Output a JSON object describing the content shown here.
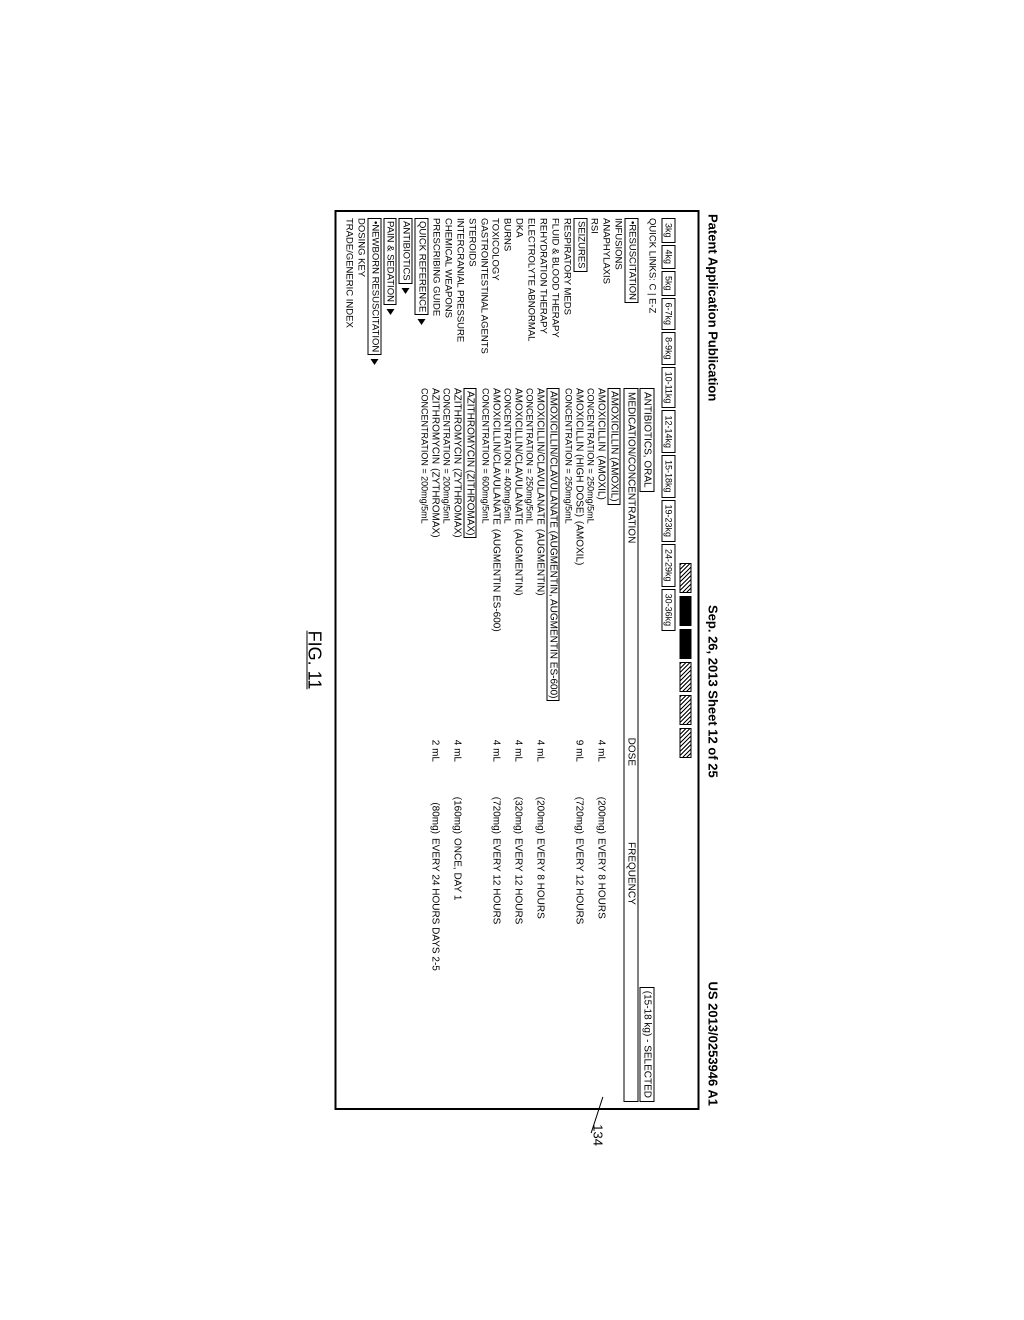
{
  "header": {
    "left": "Patent Application Publication",
    "center": "Sep. 26, 2013  Sheet 12 of 25",
    "right": "US 2013/0253946 A1"
  },
  "annotation": {
    "ref": "134"
  },
  "tabs": [
    "3kg",
    "4kg",
    "5kg",
    "6-7kg",
    "8-9kg",
    "10-11kg",
    "12-14kg",
    "15-18kg",
    "19-23kg",
    "24-29kg",
    "30-36kg"
  ],
  "quicklinks_label": "QUICK LINKS: C | E-Z",
  "sidebar": {
    "resuscitation": "•RESUSCITATION",
    "items": [
      "INFUSIONS",
      "ANAPHYLAXIS",
      "RSI"
    ],
    "seizures": "SEIZURES",
    "items2": [
      "RESPIRATORY MEDS",
      "FLUID & BLOOD THERAPY",
      "REHYDRATION THERAPY",
      "ELECTROLYTE ABNORMAL",
      "DKA",
      "BURNS",
      "TOXICOLOGY",
      "GASTROINTESTINAL AGENTS",
      "STEROIDS",
      "INTERCRANIAL PRESSURE",
      "CHEMICAL WEAPONS",
      "PRESCRIBING GUIDE"
    ],
    "footer": [
      {
        "label": "QUICK REFERENCE",
        "boxed": true,
        "tri": true
      },
      {
        "label": "ANTIBIOTICS",
        "boxed": true,
        "tri": true
      },
      {
        "label": "PAIN & SEDATION",
        "boxed": true,
        "tri": true
      },
      {
        "label": "•NEWBORN RESUSCITATION",
        "boxed": true,
        "tri": true
      },
      {
        "label": "DOSING KEY",
        "boxed": false,
        "tri": false
      },
      {
        "label": "TRADE/GENERIC INDEX",
        "boxed": false,
        "tri": false
      }
    ]
  },
  "main": {
    "section_title": "ANTIBIOTICS, ORAL",
    "weight_label": "(15-18 kg) - SELECTED",
    "col_headers": {
      "med": "MEDICATION/CONCENTRATION",
      "dose": "DOSE",
      "freq": "FREQUENCY"
    },
    "groups": [
      {
        "title": "AMOXICILLIN (AMOXIL)",
        "rows": [
          {
            "name": "AMOXICILLIN",
            "brand": "(AMOXIL)",
            "conc": "CONCENTRATION = 250mg/5mL",
            "dose": "4 mL",
            "mg": "(200mg)",
            "freq": "EVERY 8 HOURS"
          },
          {
            "name": "AMOXICILLIN (HIGH DOSE)",
            "brand": "(AMOXIL)",
            "conc": "CONCENTRATION = 250mg/5mL",
            "dose": "9 mL",
            "mg": "(720mg)",
            "freq": "EVERY 12 HOURS"
          }
        ]
      },
      {
        "title": "AMOXICILLIN/CLAVULANATE (AUGMENTIN, AUGMENTIN ES-600)",
        "rows": [
          {
            "name": "AMOXICILLIN/CLAVULANATE",
            "brand": "(AUGMENTIN)",
            "conc": "CONCENTRATION = 250mg/5mL",
            "dose": "4 mL",
            "mg": "(200mg)",
            "freq": "EVERY 8 HOURS"
          },
          {
            "name": "AMOXICILLIN/CLAVULANATE",
            "brand": "(AUGMENTIN)",
            "conc": "CONCENTRATION = 400mg/5mL",
            "dose": "4 mL",
            "mg": "(320mg)",
            "freq": "EVERY 12 HOURS"
          },
          {
            "name": "AMOXICILLIN/CLAVULANATE",
            "brand": "(AUGMENTIN ES-600)",
            "conc": "CONCENTRATION = 600mg/5mL",
            "dose": "4 mL",
            "mg": "(720mg)",
            "freq": "EVERY 12 HOURS"
          }
        ]
      },
      {
        "title": "AZITHROMYCIN (ZITHROMAX)",
        "rows": [
          {
            "name": "AZITHROMYCIN",
            "brand": "(ZYTHROMAX)",
            "conc": "CONCENTRATION = 200mg/5mL",
            "dose": "4 mL",
            "mg": "(160mg)",
            "freq": "ONCE, DAY 1"
          },
          {
            "name": "AZITHROMYCIN",
            "brand": "(ZYTHROMAX)",
            "conc": "CONCENTRATION = 200mg/5mL",
            "dose": "2 mL",
            "mg": "(80mg)",
            "freq": "EVERY 24 HOURS DAYS 2-5"
          }
        ]
      }
    ]
  },
  "figure_label": "FIG. 11"
}
